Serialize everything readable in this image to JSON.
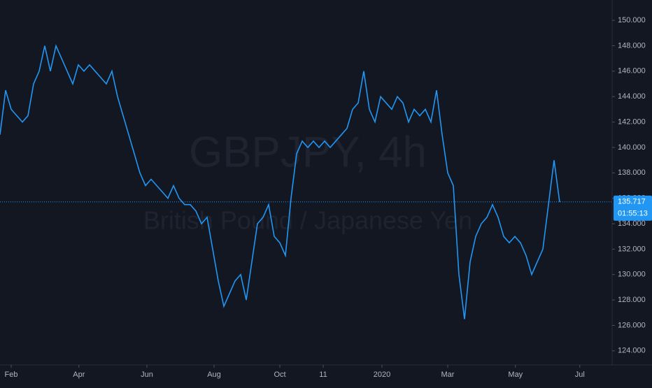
{
  "chart_data": {
    "type": "line",
    "title": "GBPJPY, 4h",
    "subtitle": "British Pound / Japanese Yen",
    "x": [
      0,
      1,
      2,
      3,
      4,
      5,
      6,
      7,
      8,
      9,
      10,
      11,
      12,
      13,
      14,
      15,
      16,
      17,
      18,
      19,
      20,
      21,
      22,
      23,
      24,
      25,
      26,
      27,
      28,
      29,
      30,
      31,
      32,
      33,
      34,
      35,
      36,
      37,
      38,
      39,
      40,
      41,
      42,
      43,
      44,
      45,
      46,
      47,
      48,
      49,
      50,
      51,
      52,
      53,
      54,
      55,
      56,
      57,
      58,
      59,
      60,
      61,
      62,
      63,
      64,
      65,
      66,
      67,
      68,
      69,
      70,
      71,
      72,
      73,
      74,
      75,
      76,
      77,
      78,
      79,
      80,
      81,
      82,
      83,
      84,
      85,
      86,
      87,
      88,
      89,
      90,
      91,
      92,
      93,
      94,
      95,
      96,
      97,
      98,
      99,
      100
    ],
    "series": [
      {
        "color": "#2196f3",
        "values": [
          141,
          144.5,
          143,
          142.5,
          142,
          142.5,
          145,
          146,
          148,
          146,
          148,
          147,
          146,
          145,
          146.5,
          146,
          146.5,
          146,
          145.5,
          145,
          146,
          144,
          142.5,
          141,
          139.5,
          138,
          137,
          137.5,
          137,
          136.5,
          136,
          137,
          136,
          135.5,
          135.5,
          135,
          134,
          134.5,
          132,
          129.5,
          127.5,
          128.5,
          129.5,
          130,
          128,
          131,
          134,
          134.5,
          135.5,
          133,
          132.5,
          131.5,
          136,
          139.5,
          140.5,
          140,
          140.5,
          140,
          140.5,
          140,
          140.5,
          141,
          141.5,
          143,
          143.5,
          146,
          143,
          142,
          144,
          143.5,
          143,
          144,
          143.5,
          142,
          143,
          142.5,
          143,
          142,
          144.5,
          141,
          138,
          137,
          130,
          126.5,
          131,
          133,
          134,
          134.5,
          135.5,
          134.5,
          133,
          132.5,
          133,
          132.5,
          131.5,
          130,
          131,
          132,
          135.5,
          139,
          135.7
        ]
      }
    ],
    "xlim": [
      0,
      109.375
    ],
    "xticks": [
      {
        "value": 2,
        "label": "Feb"
      },
      {
        "value": 14.1,
        "label": "Apr"
      },
      {
        "value": 26.25,
        "label": "Jun"
      },
      {
        "value": 38.25,
        "label": "Aug"
      },
      {
        "value": 50,
        "label": "Oct"
      },
      {
        "value": 57.75,
        "label": "11"
      },
      {
        "value": 68.25,
        "label": "2020"
      },
      {
        "value": 80,
        "label": "Mar"
      },
      {
        "value": 92.1,
        "label": "May"
      },
      {
        "value": 103.6,
        "label": "Jul"
      }
    ],
    "ylim": [
      123,
      151.6
    ],
    "yticks": [
      {
        "value": 124,
        "label": "124.000"
      },
      {
        "value": 126,
        "label": "126.000"
      },
      {
        "value": 128,
        "label": "128.000"
      },
      {
        "value": 130,
        "label": "130.000"
      },
      {
        "value": 132,
        "label": "132.000"
      },
      {
        "value": 134,
        "label": "134.000"
      },
      {
        "value": 136,
        "label": "136.000"
      },
      {
        "value": 138,
        "label": "138.000"
      },
      {
        "value": 140,
        "label": "140.000"
      },
      {
        "value": 142,
        "label": "142.000"
      },
      {
        "value": 144,
        "label": "144.000"
      },
      {
        "value": 146,
        "label": "146.000"
      },
      {
        "value": 148,
        "label": "148.000"
      },
      {
        "value": 150,
        "label": "150.000"
      }
    ],
    "last_price": 135.717,
    "countdown": "01:55:13",
    "background": "#131722"
  }
}
